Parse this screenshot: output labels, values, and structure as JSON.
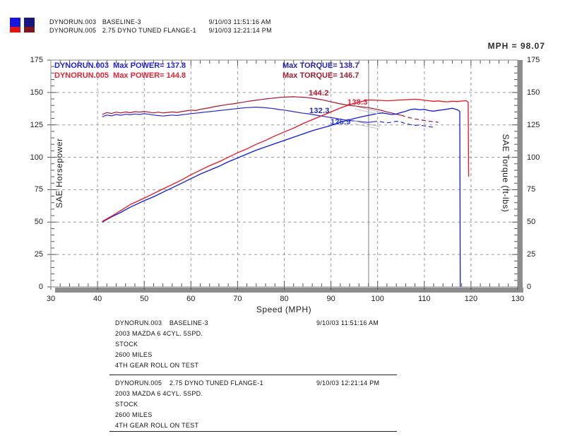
{
  "header": {
    "swatches": [
      {
        "top": "#1616e0",
        "bottom": "#e01616"
      },
      {
        "top": "#16167e",
        "bottom": "#7e161e"
      }
    ],
    "runs": [
      {
        "file": "DYNORUN.003",
        "desc": "BASELINE-3",
        "timestamp": "9/10/03 11:51:16 AM"
      },
      {
        "file": "DYNORUN.005",
        "desc": "2.75 DYNO TUNED FLANGE-1",
        "timestamp": "9/10/03 12:21:14 PM"
      }
    ]
  },
  "cursor_readout": "MPH = 98.07",
  "plot_legend": {
    "rows": [
      {
        "file": "DYNORUN.003",
        "power": "Max POWER= 137.8",
        "torque": "Max TORQUE= 138.7",
        "power_color": "#2020e0",
        "torque_color": "#2626a8"
      },
      {
        "file": "DYNORUN.005",
        "power": "Max POWER= 144.8",
        "torque": "Max TORQUE= 146.7",
        "power_color": "#e62333",
        "torque_color": "#a02030"
      }
    ]
  },
  "axes": {
    "left_title": "SAE Horsepower",
    "right_title": "SAE Torque (ft-lbs)",
    "bottom_title": "Speed (MPH)"
  },
  "footer": {
    "blocks": [
      {
        "file": "DYNORUN.003",
        "desc": "BASELINE-3",
        "timestamp": "9/10/03 11:51:16 AM",
        "lines": [
          "2003 MAZDA 6 4CYL. 5SPD.",
          "STOCK",
          "2600 MILES",
          "4TH GEAR ROLL ON TEST"
        ]
      },
      {
        "file": "DYNORUN.005",
        "desc": "2.75 DYNO TUNED FLANGE-1",
        "timestamp": "9/10/03 12:21:14 PM",
        "lines": [
          "2003 MAZDA 6 4CYL. 5SPD.",
          "STOCK",
          "2600 MILES",
          "4TH GEAR ROLL ON TEST"
        ]
      }
    ]
  },
  "chart_data": {
    "type": "line",
    "xlabel": "Speed (MPH)",
    "ylabel_left": "SAE Horsepower",
    "ylabel_right": "SAE Torque (ft-lbs)",
    "x_range": [
      30,
      130
    ],
    "y_range": [
      0,
      175
    ],
    "x_ticks": [
      30,
      40,
      50,
      60,
      70,
      80,
      90,
      100,
      110,
      120,
      130
    ],
    "y_ticks": [
      0,
      25,
      50,
      75,
      100,
      125,
      150,
      175
    ],
    "x_minor_step": 2,
    "y_minor_step": 5,
    "grid": true,
    "cursor": {
      "mph": 98.07,
      "label": "MPH = 98.07"
    },
    "series": [
      {
        "name": "torque_dynorun003",
        "run": "DYNORUN.003",
        "channel": "torque",
        "max": 138.7,
        "color": "#2a2ac8",
        "width": 1.2,
        "dash_from_x": 99,
        "points": [
          [
            41,
            131.2
          ],
          [
            42,
            132.6
          ],
          [
            43,
            132
          ],
          [
            44,
            133
          ],
          [
            45,
            132.4
          ],
          [
            46,
            133.2
          ],
          [
            47,
            132.8
          ],
          [
            48,
            133.4
          ],
          [
            49,
            133
          ],
          [
            50,
            133.6
          ],
          [
            51,
            133.2
          ],
          [
            52,
            132.6
          ],
          [
            53,
            132.2
          ],
          [
            54,
            131.8
          ],
          [
            55,
            132.2
          ],
          [
            56,
            132.6
          ],
          [
            57,
            132.2
          ],
          [
            58,
            132.8
          ],
          [
            59,
            133.2
          ],
          [
            60,
            133.6
          ],
          [
            61,
            134
          ],
          [
            62,
            134.4
          ],
          [
            63,
            134.8
          ],
          [
            64,
            135.2
          ],
          [
            65,
            135.6
          ],
          [
            66,
            136
          ],
          [
            67,
            136.4
          ],
          [
            68,
            136.8
          ],
          [
            69,
            137.2
          ],
          [
            70,
            137.6
          ],
          [
            71,
            138
          ],
          [
            72,
            138.3
          ],
          [
            73,
            138.5
          ],
          [
            74,
            138.7
          ],
          [
            75,
            138.5
          ],
          [
            76,
            138.2
          ],
          [
            77,
            137.8
          ],
          [
            78,
            137.4
          ],
          [
            79,
            136.8
          ],
          [
            80,
            136.4
          ],
          [
            81,
            135.8
          ],
          [
            82,
            135.2
          ],
          [
            83,
            134.6
          ],
          [
            84,
            134
          ],
          [
            85,
            133.6
          ],
          [
            86,
            133
          ],
          [
            87,
            132.4
          ],
          [
            88,
            131.8
          ],
          [
            89,
            131.2
          ],
          [
            90,
            130.6
          ],
          [
            91,
            130
          ],
          [
            92,
            129.4
          ],
          [
            93,
            128.8
          ],
          [
            94,
            128.4
          ],
          [
            95,
            128
          ],
          [
            96,
            127.6
          ],
          [
            97,
            127.2
          ],
          [
            98,
            126.9
          ],
          [
            99,
            127.4
          ],
          [
            100,
            127.8
          ],
          [
            101,
            127.2
          ],
          [
            102,
            126.6
          ],
          [
            103,
            127
          ],
          [
            104,
            127.8
          ],
          [
            105,
            127.2
          ],
          [
            106,
            126
          ],
          [
            107,
            125.2
          ],
          [
            108,
            124.6
          ],
          [
            109,
            124.9
          ],
          [
            110,
            124.2
          ],
          [
            111,
            123.6
          ],
          [
            112,
            123.2
          ]
        ]
      },
      {
        "name": "torque_dynorun005",
        "run": "DYNORUN.005",
        "channel": "torque",
        "max": 146.7,
        "color": "#a5142d",
        "width": 1.2,
        "dash_from_x": 105,
        "points": [
          [
            41,
            133
          ],
          [
            42,
            134.5
          ],
          [
            43,
            133.8
          ],
          [
            44,
            134.8
          ],
          [
            45,
            134.2
          ],
          [
            46,
            135
          ],
          [
            47,
            134.4
          ],
          [
            48,
            135.2
          ],
          [
            49,
            134.8
          ],
          [
            50,
            135.4
          ],
          [
            51,
            134.8
          ],
          [
            52,
            134.2
          ],
          [
            53,
            134.8
          ],
          [
            54,
            134.2
          ],
          [
            55,
            134.6
          ],
          [
            56,
            135
          ],
          [
            57,
            134.6
          ],
          [
            58,
            135.2
          ],
          [
            59,
            135.8
          ],
          [
            60,
            136.4
          ],
          [
            61,
            136
          ],
          [
            62,
            137
          ],
          [
            63,
            137.6
          ],
          [
            64,
            138.2
          ],
          [
            65,
            139
          ],
          [
            66,
            139.6
          ],
          [
            67,
            140.2
          ],
          [
            68,
            140.8
          ],
          [
            69,
            141.2
          ],
          [
            70,
            141.8
          ],
          [
            71,
            142.4
          ],
          [
            72,
            143
          ],
          [
            73,
            143.6
          ],
          [
            74,
            144
          ],
          [
            75,
            144.6
          ],
          [
            76,
            145
          ],
          [
            77,
            145.4
          ],
          [
            78,
            145.8
          ],
          [
            79,
            146.2
          ],
          [
            80,
            146.4
          ],
          [
            81,
            146.6
          ],
          [
            82,
            146.7
          ],
          [
            83,
            146.5
          ],
          [
            84,
            146.3
          ],
          [
            85,
            146
          ],
          [
            86,
            145.6
          ],
          [
            87,
            145
          ],
          [
            88,
            144.4
          ],
          [
            89,
            143.6
          ],
          [
            90,
            142.8
          ],
          [
            91,
            142
          ],
          [
            92,
            141.2
          ],
          [
            93,
            140.6
          ],
          [
            94,
            140
          ],
          [
            95,
            139.6
          ],
          [
            96,
            139.2
          ],
          [
            97,
            138.7
          ],
          [
            98,
            138.3
          ],
          [
            99,
            137.6
          ],
          [
            100,
            136.8
          ],
          [
            101,
            136
          ],
          [
            102,
            135
          ],
          [
            103,
            134.2
          ],
          [
            104,
            133.2
          ],
          [
            105,
            132.4
          ],
          [
            106,
            131.4
          ],
          [
            107,
            130.4
          ],
          [
            108,
            129.6
          ],
          [
            109,
            129
          ],
          [
            110,
            128.4
          ],
          [
            111,
            127.8
          ],
          [
            112,
            127.4
          ],
          [
            113,
            127
          ]
        ]
      },
      {
        "name": "power_dynorun003",
        "run": "DYNORUN.003",
        "channel": "power",
        "max": 137.8,
        "color": "#0f19dc",
        "width": 1.3,
        "points": [
          [
            41,
            50
          ],
          [
            43,
            54
          ],
          [
            45,
            57.5
          ],
          [
            47,
            61.5
          ],
          [
            50,
            66.5
          ],
          [
            52,
            69.5
          ],
          [
            54,
            73
          ],
          [
            56,
            76.5
          ],
          [
            58,
            80
          ],
          [
            60,
            83.5
          ],
          [
            62,
            87
          ],
          [
            64,
            90
          ],
          [
            66,
            93
          ],
          [
            68,
            96.5
          ],
          [
            70,
            99.5
          ],
          [
            72,
            102.5
          ],
          [
            74,
            105.5
          ],
          [
            76,
            108
          ],
          [
            78,
            110.5
          ],
          [
            80,
            113
          ],
          [
            82,
            115.5
          ],
          [
            84,
            118
          ],
          [
            86,
            120.5
          ],
          [
            88,
            122.5
          ],
          [
            90,
            124.5
          ],
          [
            92,
            127
          ],
          [
            94,
            129
          ],
          [
            96,
            130.8
          ],
          [
            98,
            132.3
          ],
          [
            100,
            133.8
          ],
          [
            101,
            134.2
          ],
          [
            102,
            133.6
          ],
          [
            103,
            133
          ],
          [
            104,
            133.4
          ],
          [
            105,
            134.5
          ],
          [
            106,
            135.5
          ],
          [
            107,
            136.8
          ],
          [
            108,
            137.2
          ],
          [
            109,
            136.6
          ],
          [
            110,
            137
          ],
          [
            111,
            136
          ],
          [
            112,
            135.6
          ],
          [
            113,
            136.2
          ],
          [
            114,
            136.6
          ],
          [
            115,
            137.2
          ],
          [
            116,
            137.8
          ],
          [
            117,
            136.8
          ],
          [
            117.6,
            135.5
          ],
          [
            117.7,
            0
          ]
        ]
      },
      {
        "name": "power_dynorun005",
        "run": "DYNORUN.005",
        "channel": "power",
        "max": 144.8,
        "color": "#e31423",
        "width": 1.3,
        "points": [
          [
            41,
            50.5
          ],
          [
            43,
            54.5
          ],
          [
            45,
            59
          ],
          [
            47,
            63.5
          ],
          [
            50,
            68.5
          ],
          [
            52,
            72
          ],
          [
            54,
            75.5
          ],
          [
            56,
            79
          ],
          [
            58,
            82.5
          ],
          [
            60,
            86.5
          ],
          [
            62,
            90
          ],
          [
            64,
            93.5
          ],
          [
            66,
            96.5
          ],
          [
            68,
            100
          ],
          [
            70,
            103.5
          ],
          [
            72,
            106.5
          ],
          [
            74,
            110
          ],
          [
            76,
            113
          ],
          [
            78,
            116.5
          ],
          [
            80,
            119.5
          ],
          [
            82,
            122.5
          ],
          [
            84,
            126
          ],
          [
            86,
            129
          ],
          [
            88,
            132
          ],
          [
            90,
            135
          ],
          [
            92,
            138
          ],
          [
            94,
            140.5
          ],
          [
            96,
            142.5
          ],
          [
            98,
            144.2
          ],
          [
            100,
            144
          ],
          [
            102,
            143.6
          ],
          [
            104,
            144
          ],
          [
            106,
            144.4
          ],
          [
            108,
            144.8
          ],
          [
            109,
            144.5
          ],
          [
            110,
            144
          ],
          [
            111,
            143.6
          ],
          [
            112,
            143.2
          ],
          [
            113,
            143.5
          ],
          [
            114,
            143
          ],
          [
            115,
            142.8
          ],
          [
            116,
            143.2
          ],
          [
            117,
            143
          ],
          [
            118,
            143.4
          ],
          [
            119,
            143.6
          ],
          [
            119.4,
            142.5
          ],
          [
            119.5,
            85
          ]
        ]
      }
    ],
    "annotations": [
      {
        "text": "144.2",
        "value": 144.2,
        "series": "power_dynorun005",
        "color": "#b4182d",
        "leader": false
      },
      {
        "text": "138.3",
        "value": 138.3,
        "series": "torque_dynorun005",
        "color": "#e02535",
        "leader": true
      },
      {
        "text": "132.3",
        "value": 132.3,
        "series": "power_dynorun003",
        "color": "#1f2ab4",
        "leader": false
      },
      {
        "text": "126.9",
        "value": 126.9,
        "series": "torque_dynorun003",
        "color": "#2a3ae0",
        "leader": true
      }
    ]
  }
}
